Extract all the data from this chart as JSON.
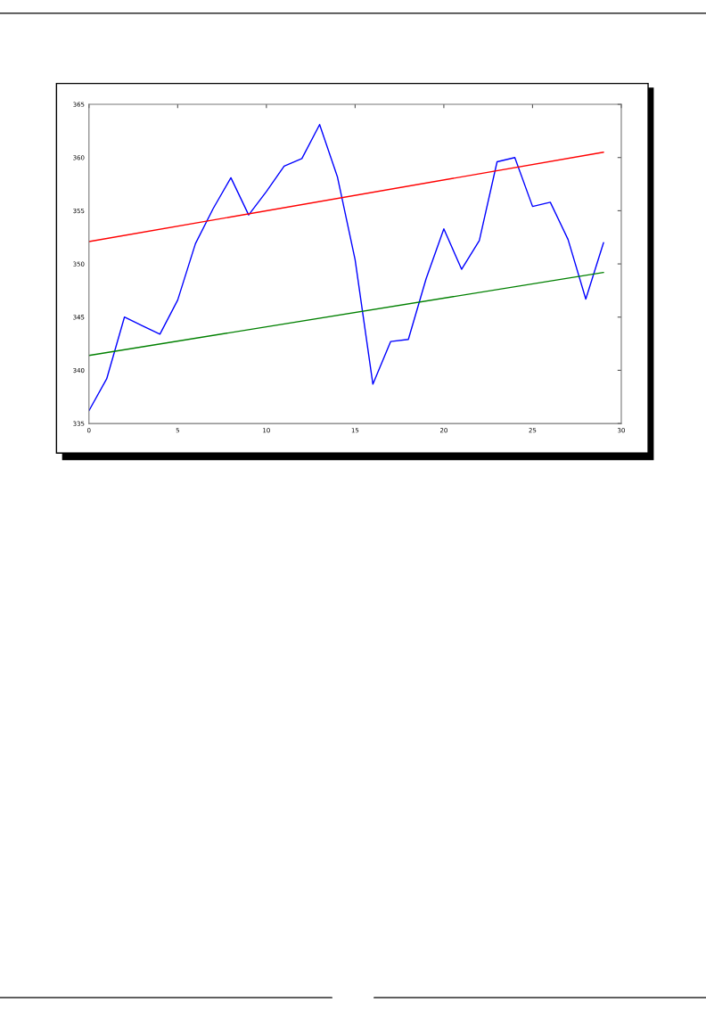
{
  "chart_data": {
    "type": "line",
    "xlim": [
      0,
      30
    ],
    "ylim": [
      335,
      365
    ],
    "xticks": [
      0,
      5,
      10,
      15,
      20,
      25,
      30
    ],
    "yticks": [
      335,
      340,
      345,
      350,
      355,
      360,
      365
    ],
    "grid": false,
    "legend": false,
    "marker": "none",
    "line_style": "solid",
    "series": [
      {
        "color": "#0000ff",
        "x": [
          0,
          1,
          2,
          3,
          4,
          5,
          6,
          7,
          8,
          9,
          10,
          11,
          12,
          13,
          14,
          15,
          16,
          17,
          18,
          19,
          20,
          21,
          22,
          23,
          24,
          25,
          26,
          27,
          28,
          29
        ],
        "values": [
          336.2,
          339.2,
          345.0,
          344.2,
          343.4,
          346.6,
          351.9,
          355.2,
          358.1,
          354.6,
          356.8,
          359.2,
          359.9,
          363.1,
          358.2,
          350.4,
          338.7,
          342.7,
          342.9,
          348.6,
          353.3,
          349.5,
          352.2,
          359.6,
          360.0,
          355.4,
          355.8,
          352.3,
          346.7,
          352.0
        ]
      },
      {
        "color": "#ff0000",
        "x": [
          0,
          29
        ],
        "values": [
          352.1,
          360.5
        ]
      },
      {
        "color": "#008000",
        "x": [
          0,
          29
        ],
        "values": [
          341.4,
          349.2
        ]
      }
    ]
  }
}
